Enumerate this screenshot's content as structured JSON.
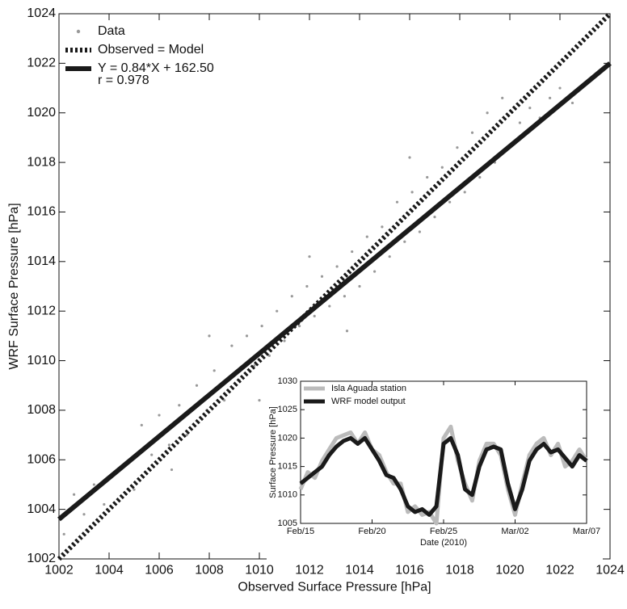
{
  "chart_data": [
    {
      "type": "scatter",
      "xlabel": "Observed Surface Pressure [hPa]",
      "ylabel": "WRF Surface Pressure [hPa]",
      "xlim": [
        1002,
        1024
      ],
      "ylim": [
        1002,
        1024
      ],
      "xticks": [
        1002,
        1004,
        1006,
        1008,
        1010,
        1012,
        1014,
        1016,
        1018,
        1020,
        1022,
        1024
      ],
      "yticks": [
        1002,
        1004,
        1006,
        1008,
        1010,
        1012,
        1014,
        1016,
        1018,
        1020,
        1022,
        1024
      ],
      "legend": "upper left",
      "annotation": "r =  0.978",
      "series": [
        {
          "name": "Data",
          "color": "#999999",
          "mode": "markers",
          "x": [
            1002.2,
            1002.6,
            1003.0,
            1003.4,
            1003.8,
            1004.2,
            1004.6,
            1005.0,
            1005.3,
            1005.7,
            1006.0,
            1006.4,
            1006.8,
            1007.1,
            1007.5,
            1007.9,
            1008.2,
            1008.6,
            1008.9,
            1009.2,
            1009.5,
            1009.8,
            1010.1,
            1010.4,
            1010.7,
            1011.0,
            1011.3,
            1011.6,
            1011.9,
            1012.2,
            1012.5,
            1012.8,
            1013.1,
            1013.4,
            1013.7,
            1014.0,
            1014.3,
            1014.6,
            1014.9,
            1015.2,
            1015.5,
            1015.8,
            1016.1,
            1016.4,
            1016.7,
            1017.0,
            1017.3,
            1017.6,
            1017.9,
            1018.2,
            1018.5,
            1018.8,
            1019.1,
            1019.4,
            1019.7,
            1020.0,
            1020.4,
            1020.8,
            1021.2,
            1021.6,
            1022.0,
            1022.5,
            1023.0,
            1012.0,
            1010.0,
            1016.0,
            1013.5,
            1006.5,
            1008.0
          ],
          "values": [
            1003.0,
            1004.6,
            1003.8,
            1005.0,
            1004.2,
            1005.4,
            1005.8,
            1004.8,
            1007.4,
            1006.2,
            1007.8,
            1006.6,
            1008.2,
            1007.0,
            1009.0,
            1008.0,
            1009.6,
            1008.4,
            1010.6,
            1009.2,
            1011.0,
            1009.8,
            1011.4,
            1010.2,
            1012.0,
            1010.8,
            1012.6,
            1011.4,
            1013.0,
            1011.8,
            1013.4,
            1012.2,
            1013.8,
            1012.6,
            1014.4,
            1013.0,
            1015.0,
            1013.6,
            1015.4,
            1014.2,
            1016.4,
            1014.8,
            1016.8,
            1015.2,
            1017.4,
            1015.8,
            1017.8,
            1016.4,
            1018.6,
            1016.8,
            1019.2,
            1017.4,
            1020.0,
            1018.0,
            1020.6,
            1018.6,
            1019.6,
            1020.2,
            1019.8,
            1020.6,
            1021.0,
            1020.4,
            1021.2,
            1014.2,
            1008.4,
            1018.2,
            1011.2,
            1005.6,
            1011.0
          ]
        },
        {
          "name": "Observed = Model",
          "color": "#1a1a1a",
          "mode": "line",
          "line_style": "dotted",
          "x": [
            1002,
            1024
          ],
          "values": [
            1002,
            1024
          ]
        },
        {
          "name": "Y = 0.84*X + 162.50",
          "color": "#1a1a1a",
          "mode": "line",
          "line_style": "solid",
          "x": [
            1002,
            1024
          ],
          "values": [
            1003.6,
            1022.0
          ]
        }
      ]
    },
    {
      "type": "line",
      "xlabel": "Date (2010)",
      "ylabel": "Surface Pressure [hPa]",
      "xlim": [
        0,
        20
      ],
      "ylim": [
        1005,
        1030
      ],
      "xticks": [
        {
          "value": 0,
          "label": "Feb/15"
        },
        {
          "value": 5,
          "label": "Feb/20"
        },
        {
          "value": 10,
          "label": "Feb/25"
        },
        {
          "value": 15,
          "label": "Mar/02"
        },
        {
          "value": 20,
          "label": "Mar/07"
        }
      ],
      "yticks": [
        1005,
        1010,
        1015,
        1020,
        1025,
        1030
      ],
      "legend": "upper left",
      "series": [
        {
          "name": "Isla Aguada station",
          "color": "#bbbbbb",
          "mode": "line",
          "line_style": "solid",
          "x": [
            0,
            0.5,
            1,
            1.5,
            2,
            2.5,
            3,
            3.5,
            4,
            4.5,
            5,
            5.5,
            6,
            6.5,
            7,
            7.5,
            8,
            8.5,
            9,
            9.5,
            10,
            10.5,
            11,
            11.5,
            12,
            12.5,
            13,
            13.5,
            14,
            14.5,
            15,
            15.5,
            16,
            16.5,
            17,
            17.5,
            18,
            18.5,
            19,
            19.5,
            20
          ],
          "values": [
            1011,
            1014,
            1013,
            1016,
            1018,
            1020,
            1020.5,
            1021,
            1019,
            1021,
            1018,
            1017,
            1014,
            1012,
            1012,
            1007,
            1008,
            1006.5,
            1007,
            1005,
            1020,
            1022,
            1016,
            1012,
            1009,
            1016,
            1019,
            1019,
            1017,
            1011,
            1006.5,
            1012,
            1017,
            1019,
            1020,
            1017,
            1019,
            1015,
            1016,
            1018,
            1016
          ]
        },
        {
          "name": "WRF model output",
          "color": "#1a1a1a",
          "mode": "line",
          "line_style": "solid",
          "x": [
            0,
            0.5,
            1,
            1.5,
            2,
            2.5,
            3,
            3.5,
            4,
            4.5,
            5,
            5.5,
            6,
            6.5,
            7,
            7.5,
            8,
            8.5,
            9,
            9.5,
            10,
            10.5,
            11,
            11.5,
            12,
            12.5,
            13,
            13.5,
            14,
            14.5,
            15,
            15.5,
            16,
            16.5,
            17,
            17.5,
            18,
            18.5,
            19,
            19.5,
            20
          ],
          "values": [
            1012,
            1013,
            1014,
            1015,
            1017,
            1018.5,
            1019.5,
            1020,
            1019,
            1020,
            1018,
            1016,
            1013.5,
            1013,
            1011,
            1008,
            1007,
            1007.5,
            1006.5,
            1008,
            1019,
            1020,
            1017,
            1011,
            1010,
            1015,
            1018,
            1018.5,
            1018,
            1012,
            1007.5,
            1011,
            1016,
            1018,
            1019,
            1017.5,
            1018,
            1016.5,
            1015,
            1017,
            1016
          ]
        }
      ]
    }
  ]
}
